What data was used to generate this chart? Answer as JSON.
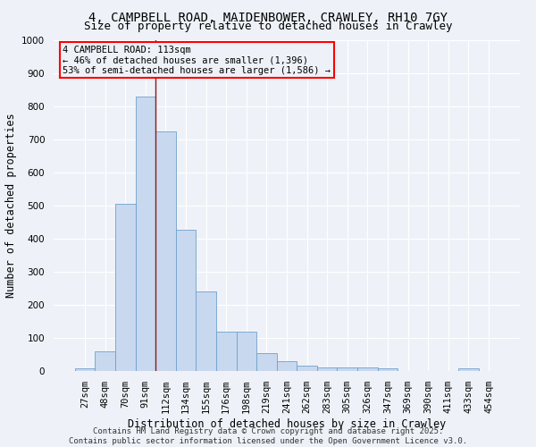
{
  "title": "4, CAMPBELL ROAD, MAIDENBOWER, CRAWLEY, RH10 7GY",
  "subtitle": "Size of property relative to detached houses in Crawley",
  "xlabel": "Distribution of detached houses by size in Crawley",
  "ylabel": "Number of detached properties",
  "categories": [
    "27sqm",
    "48sqm",
    "70sqm",
    "91sqm",
    "112sqm",
    "134sqm",
    "155sqm",
    "176sqm",
    "198sqm",
    "219sqm",
    "241sqm",
    "262sqm",
    "283sqm",
    "305sqm",
    "326sqm",
    "347sqm",
    "369sqm",
    "390sqm",
    "411sqm",
    "433sqm",
    "454sqm"
  ],
  "values": [
    8,
    60,
    505,
    830,
    725,
    428,
    240,
    118,
    118,
    55,
    30,
    15,
    12,
    10,
    10,
    8,
    0,
    0,
    0,
    7,
    0
  ],
  "bar_color": "#c8d8ee",
  "bar_edge_color": "#6fa0cc",
  "subject_bar_index": 4,
  "annotation_line1": "4 CAMPBELL ROAD: 113sqm",
  "annotation_line2": "← 46% of detached houses are smaller (1,396)",
  "annotation_line3": "53% of semi-detached houses are larger (1,586) →",
  "vline_color": "#8b1a1a",
  "background_color": "#eef2f8",
  "grid_color": "#ffffff",
  "ylim": [
    0,
    1000
  ],
  "yticks": [
    0,
    100,
    200,
    300,
    400,
    500,
    600,
    700,
    800,
    900,
    1000
  ],
  "footer_line1": "Contains HM Land Registry data © Crown copyright and database right 2025.",
  "footer_line2": "Contains public sector information licensed under the Open Government Licence v3.0.",
  "title_fontsize": 10,
  "subtitle_fontsize": 9,
  "xlabel_fontsize": 8.5,
  "ylabel_fontsize": 8.5,
  "tick_fontsize": 7.5,
  "annotation_fontsize": 7.5,
  "footer_fontsize": 6.5
}
